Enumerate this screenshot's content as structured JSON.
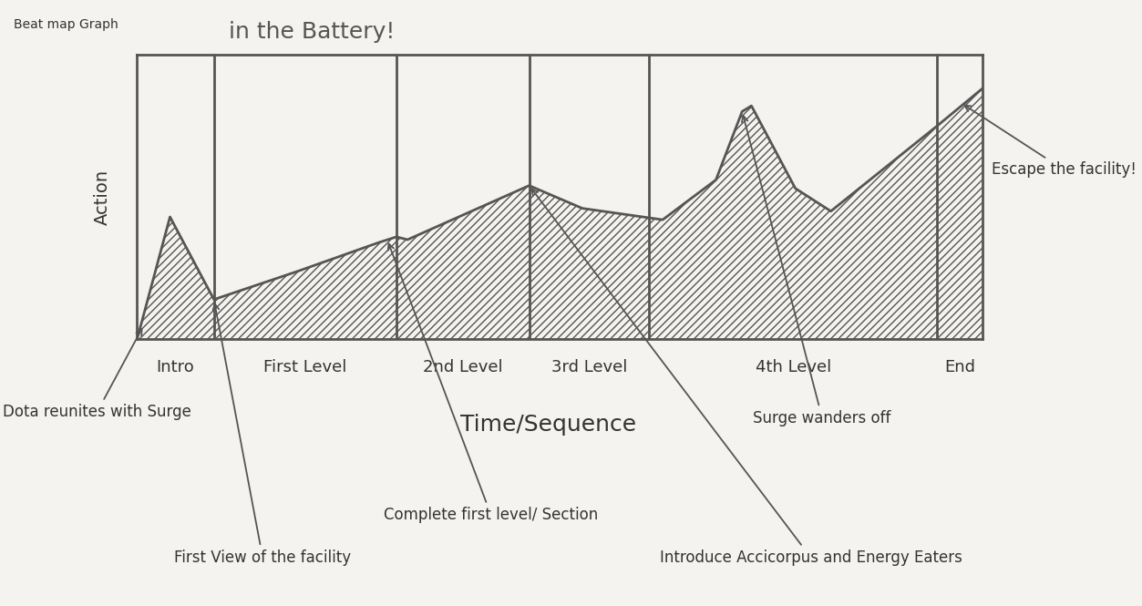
{
  "chart_data": {
    "type": "area",
    "title": "in the Battery!",
    "corner_note": "Beat map Graph",
    "y_label": "Action",
    "x_label": "Time/Sequence",
    "x": [
      0,
      3.9,
      9.1,
      19.1,
      28.6,
      30.7,
      32.0,
      46.4,
      52.7,
      62.2,
      68.5,
      71.6,
      72.7,
      77.9,
      82.1,
      94.7,
      100
    ],
    "values": [
      0,
      4.3,
      1.4,
      2.4,
      3.4,
      3.6,
      3.5,
      5.4,
      4.6,
      4.2,
      5.6,
      8.0,
      8.2,
      5.3,
      4.5,
      7.5,
      8.8
    ],
    "color": "#555555",
    "xlim": [
      0,
      100
    ],
    "ylim": [
      0,
      10
    ],
    "xticks": [],
    "yticks": [],
    "tick_labels": false,
    "grid": false,
    "sections": [
      {
        "label": "Intro",
        "start": 0,
        "end": 9.1
      },
      {
        "label": "First Level",
        "start": 9.1,
        "end": 30.7
      },
      {
        "label": "2nd Level",
        "start": 30.7,
        "end": 46.4
      },
      {
        "label": "3rd Level",
        "start": 46.4,
        "end": 60.6
      },
      {
        "label": "4th Level",
        "start": 60.6,
        "end": 94.7
      },
      {
        "label": "End",
        "start": 94.7,
        "end": 100
      }
    ],
    "annotations": [
      {
        "text": "Dota reunites with Surge",
        "x": 0.8,
        "y": 0.5
      },
      {
        "text": "First View of the facility",
        "x": 9.1,
        "y": 1.4
      },
      {
        "text": "Complete first level/ Section",
        "x": 29.6,
        "y": 3.5
      },
      {
        "text": "Introduce Accicorpus and Energy Eaters",
        "x": 46.4,
        "y": 5.4
      },
      {
        "text": "Surge wanders off",
        "x": 71.6,
        "y": 8.0
      },
      {
        "text": "Escape the facility!",
        "x": 97.5,
        "y": 8.3
      }
    ]
  }
}
